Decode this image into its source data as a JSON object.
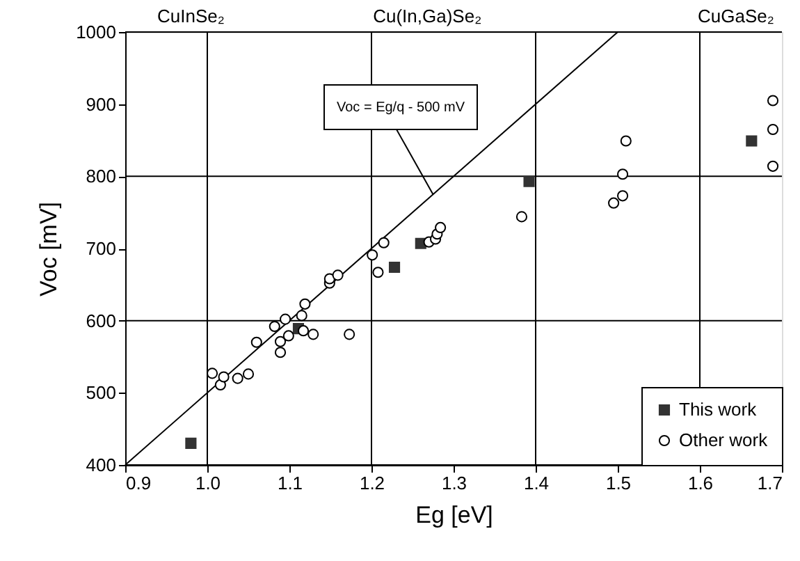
{
  "chart_data": {
    "type": "scatter",
    "xlabel": "Eg [eV]",
    "ylabel": "Voc [mV]",
    "xlim": [
      0.9,
      1.7
    ],
    "xticks": [
      0.9,
      {
        "value": 1.0,
        "label": "1.0"
      },
      1.1,
      1.2,
      1.3,
      1.4,
      1.5,
      1.6,
      1.7
    ],
    "ylim": [
      400,
      1000
    ],
    "yticks": [
      400,
      500,
      600,
      700,
      800,
      900,
      1000
    ],
    "grid": true,
    "legend": "bottom right",
    "annotations": [
      "CuInSe₂",
      "Cu(In,Ga)Se₂",
      "CuGaSe₂",
      {
        "text": "Voc = Eg/q - 500 mV",
        "x": 1.275,
        "y": 775
      }
    ],
    "series": [
      {
        "type": "line",
        "color": "#000000",
        "x": [
          0.9,
          1.5
        ],
        "values": [
          400,
          1000
        ],
        "marker": "none"
      },
      {
        "name": "This work",
        "color": "#333333",
        "marker": "square",
        "x": [
          0.98,
          1.111,
          1.228,
          1.26,
          1.392,
          1.663
        ],
        "values": [
          430,
          589,
          674,
          707,
          793,
          849
        ]
      },
      {
        "name": "Other work",
        "color": "#000000",
        "marker": "circle",
        "x": [
          1.006,
          1.016,
          1.02,
          1.037,
          1.05,
          1.06,
          1.082,
          1.089,
          1.089,
          1.095,
          1.099,
          1.115,
          1.117,
          1.119,
          1.129,
          1.149,
          1.149,
          1.159,
          1.173,
          1.201,
          1.208,
          1.215,
          1.27,
          1.278,
          1.28,
          1.284,
          1.383,
          1.495,
          1.506,
          1.506,
          1.51,
          1.689,
          1.689,
          1.689
        ],
        "values": [
          527,
          511,
          522,
          520,
          526,
          570,
          592,
          571,
          556,
          602,
          579,
          607,
          586,
          623,
          581,
          652,
          658,
          663,
          581,
          691,
          667,
          708,
          709,
          713,
          720,
          729,
          744,
          763,
          773,
          803,
          849,
          814,
          865,
          905
        ]
      }
    ]
  }
}
